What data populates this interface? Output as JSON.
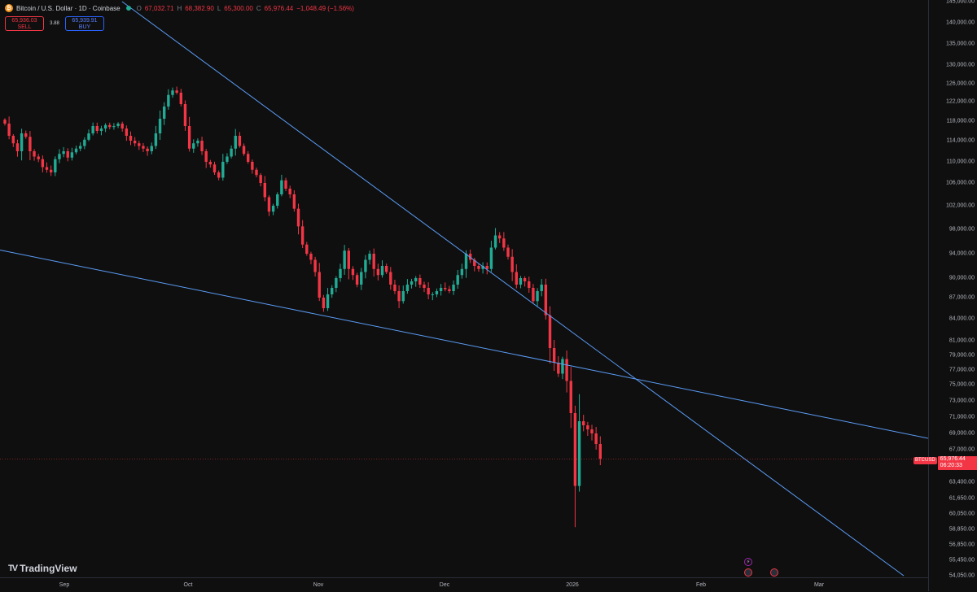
{
  "symbol": {
    "title": "Bitcoin / U.S. Dollar · 1D · Coinbase",
    "o_label": "O",
    "o_value": "67,032.71",
    "h_label": "H",
    "h_value": "68,382.90",
    "l_label": "L",
    "l_value": "65,300.00",
    "c_label": "C",
    "c_value": "65,976.44",
    "change": "−1,048.49 (−1.56%)"
  },
  "trade": {
    "sell_price": "65,936.03",
    "sell_label": "SELL",
    "spread": "3.88",
    "buy_price": "65,939.91",
    "buy_label": "BUY"
  },
  "last_price": {
    "symbol": "BTCUSD",
    "price": "65,976.44",
    "countdown": "06:20:33",
    "value": 65976.44
  },
  "brand": {
    "name": "TradingView"
  },
  "colors": {
    "background": "#0f0f0f",
    "up": "#22ab94",
    "down": "#f23645",
    "trendline": "#5b9cf6",
    "axis_text": "#b2b5be"
  },
  "chart_data": {
    "type": "candlestick",
    "title": "Bitcoin / U.S. Dollar · 1D · Coinbase",
    "x_axis_ticks": [
      "Sep",
      "Oct",
      "Nov",
      "Dec",
      "2026",
      "Feb",
      "Mar"
    ],
    "y_axis_ticks": [
      "145,000.00",
      "140,000.00",
      "135,000.00",
      "130,000.00",
      "126,000.00",
      "122,000.00",
      "118,000.00",
      "114,000.00",
      "110,000.00",
      "106,000.00",
      "102,000.00",
      "98,000.00",
      "94,000.00",
      "90,000.00",
      "87,000.00",
      "84,000.00",
      "81,000.00",
      "79,000.00",
      "77,000.00",
      "75,000.00",
      "73,000.00",
      "71,000.00",
      "69,000.00",
      "67,000.00",
      "63,400.00",
      "61,650.00",
      "60,050.00",
      "58,850.00",
      "56,850.00",
      "55,450.00",
      "54,050.00"
    ],
    "y_axis_values": [
      145000,
      140000,
      135000,
      130000,
      126000,
      122000,
      118000,
      114000,
      110000,
      106000,
      102000,
      98000,
      94000,
      90000,
      87000,
      84000,
      81000,
      79000,
      77000,
      75000,
      73000,
      71000,
      69000,
      67000,
      63400,
      61650,
      60050,
      58850,
      56850,
      55450,
      54050
    ],
    "closes": [
      117500,
      115000,
      113500,
      112000,
      115500,
      114800,
      112000,
      111000,
      110500,
      109000,
      108500,
      108000,
      110500,
      111500,
      112000,
      110800,
      111800,
      112500,
      113000,
      114200,
      115500,
      117000,
      116000,
      116500,
      117200,
      116800,
      117000,
      117500,
      116500,
      115000,
      114000,
      113500,
      113000,
      112500,
      112000,
      113000,
      115500,
      118500,
      121000,
      123500,
      124500,
      124000,
      121500,
      117000,
      112500,
      113500,
      114000,
      112000,
      110000,
      109500,
      108000,
      107000,
      110000,
      111000,
      112500,
      115000,
      113000,
      111500,
      110000,
      108500,
      107500,
      106000,
      103500,
      101000,
      102000,
      104000,
      106500,
      105000,
      104000,
      101500,
      98500,
      95500,
      94000,
      93000,
      91000,
      87000,
      85500,
      87500,
      88500,
      90000,
      91500,
      94500,
      91500,
      90500,
      89000,
      91000,
      93000,
      94000,
      91500,
      90500,
      92000,
      91000,
      89000,
      88000,
      86500,
      88000,
      89000,
      89500,
      90000,
      89000,
      88500,
      87500,
      87500,
      88000,
      88500,
      88300,
      88000,
      89000,
      90500,
      91500,
      94000,
      93000,
      92000,
      91500,
      92000,
      91500,
      95000,
      97000,
      96500,
      95000,
      93500,
      91000,
      89000,
      90000,
      89500,
      88500,
      86500,
      88000,
      89000,
      84500,
      80000,
      78000,
      76500,
      78500,
      75500,
      71500,
      63000,
      70500,
      70000,
      69500,
      69000,
      67700,
      66000
    ],
    "trendlines": [
      {
        "points": [
          [
            "Aug 22",
            146500
          ],
          [
            "Mar 3",
            54000
          ]
        ]
      },
      {
        "points": [
          [
            "Aug 22",
            94600
          ],
          [
            "Mar 3",
            68200
          ]
        ]
      }
    ],
    "last_price": 65976.44,
    "grid": false
  }
}
